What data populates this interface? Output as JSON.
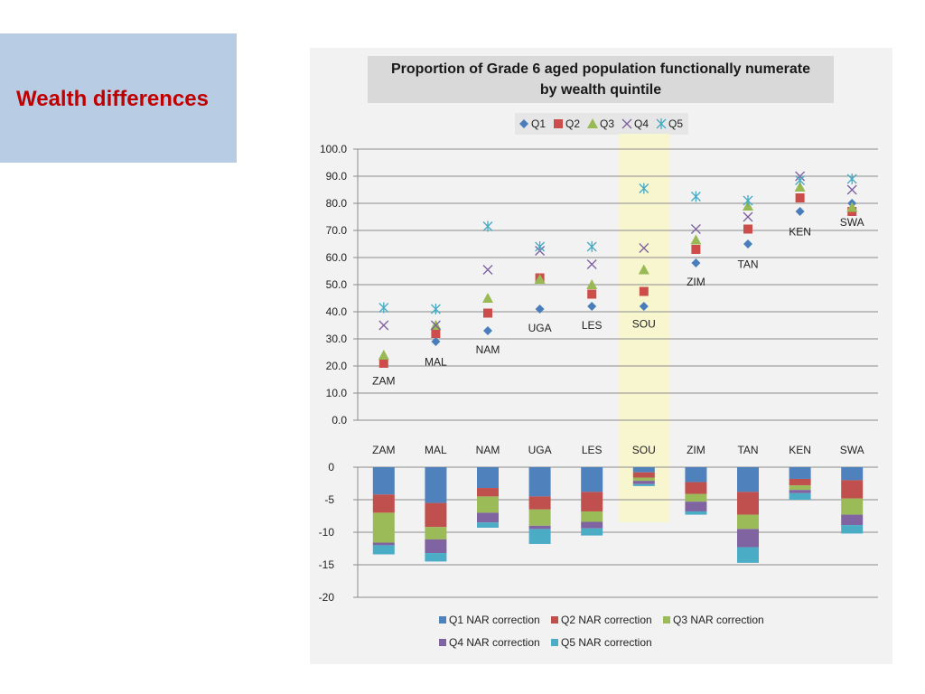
{
  "side_panel": {
    "title": "Wealth differences"
  },
  "chart_data": [
    {
      "type": "scatter",
      "title_line1": "Proportion of Grade 6 aged population functionally numerate",
      "title_line2": "by wealth quintile",
      "categories": [
        "ZAM",
        "MAL",
        "NAM",
        "UGA",
        "LES",
        "SOU",
        "ZIM",
        "TAN",
        "KEN",
        "SWA"
      ],
      "highlight_category": "SOU",
      "ylim": [
        0,
        100
      ],
      "yticks": [
        "100.0",
        "90.0",
        "80.0",
        "70.0",
        "60.0",
        "50.0",
        "40.0",
        "30.0",
        "20.0",
        "10.0",
        "0.0"
      ],
      "series": [
        {
          "name": "Q1",
          "marker": "diamond",
          "color": "#4a7ebb",
          "values": [
            null,
            29,
            33,
            41,
            42,
            42,
            58,
            65,
            77,
            80
          ]
        },
        {
          "name": "Q2",
          "marker": "square",
          "color": "#cd4d4a",
          "values": [
            21,
            32,
            39.5,
            52.5,
            46.5,
            47.5,
            63,
            70.5,
            82,
            77
          ]
        },
        {
          "name": "Q3",
          "marker": "triangle",
          "color": "#98b954",
          "values": [
            24,
            35,
            45,
            52,
            50,
            55.5,
            66.5,
            79,
            86,
            78.5
          ]
        },
        {
          "name": "Q4",
          "marker": "x",
          "color": "#7d5fa0",
          "values": [
            35,
            35,
            55.5,
            62.5,
            57.5,
            63.5,
            70.5,
            75,
            90,
            85
          ]
        },
        {
          "name": "Q5",
          "marker": "star",
          "color": "#46aac5",
          "values": [
            41.5,
            41,
            71.5,
            64,
            64,
            85.5,
            82.5,
            81,
            88.5,
            89
          ]
        }
      ],
      "point_labels": [
        {
          "text": "ZAM",
          "category": "ZAM",
          "value": 14.5
        },
        {
          "text": "MAL",
          "category": "MAL",
          "value": 21.5
        },
        {
          "text": "NAM",
          "category": "NAM",
          "value": 26
        },
        {
          "text": "UGA",
          "category": "UGA",
          "value": 34
        },
        {
          "text": "LES",
          "category": "LES",
          "value": 35
        },
        {
          "text": "SOU",
          "category": "SOU",
          "value": 35.5
        },
        {
          "text": "ZIM",
          "category": "ZIM",
          "value": 51
        },
        {
          "text": "TAN",
          "category": "TAN",
          "value": 57.5
        },
        {
          "text": "KEN",
          "category": "KEN",
          "value": 69.5
        },
        {
          "text": "SWA",
          "category": "SWA",
          "value": 73
        }
      ]
    },
    {
      "type": "bar",
      "stacked": true,
      "categories": [
        "ZAM",
        "MAL",
        "NAM",
        "UGA",
        "LES",
        "SOU",
        "ZIM",
        "TAN",
        "KEN",
        "SWA"
      ],
      "ylim": [
        -20,
        0
      ],
      "yticks": [
        "0",
        "-5",
        "-10",
        "-15",
        "-20"
      ],
      "series": [
        {
          "name": "Q1 NAR correction",
          "color": "#4f81bd",
          "values": [
            -4.2,
            -5.5,
            -3.2,
            -4.5,
            -3.8,
            -0.8,
            -2.3,
            -3.8,
            -1.8,
            -2.0
          ]
        },
        {
          "name": "Q2 NAR correction",
          "color": "#c0504d",
          "values": [
            -2.8,
            -3.7,
            -1.3,
            -2.0,
            -3.0,
            -0.8,
            -1.8,
            -3.5,
            -1.0,
            -2.8
          ]
        },
        {
          "name": "Q3 NAR correction",
          "color": "#9bbb59",
          "values": [
            -4.6,
            -1.9,
            -2.5,
            -2.5,
            -1.6,
            -0.5,
            -1.2,
            -2.2,
            -0.7,
            -2.5
          ]
        },
        {
          "name": "Q4 NAR correction",
          "color": "#8064a2",
          "values": [
            -0.4,
            -2.1,
            -1.5,
            -0.5,
            -1.0,
            -0.5,
            -1.5,
            -2.8,
            -0.5,
            -1.6
          ]
        },
        {
          "name": "Q5 NAR correction",
          "color": "#4bacc6",
          "values": [
            -1.4,
            -1.3,
            -0.8,
            -2.3,
            -1.1,
            -0.3,
            -0.5,
            -2.4,
            -1.0,
            -1.3
          ]
        }
      ]
    }
  ]
}
